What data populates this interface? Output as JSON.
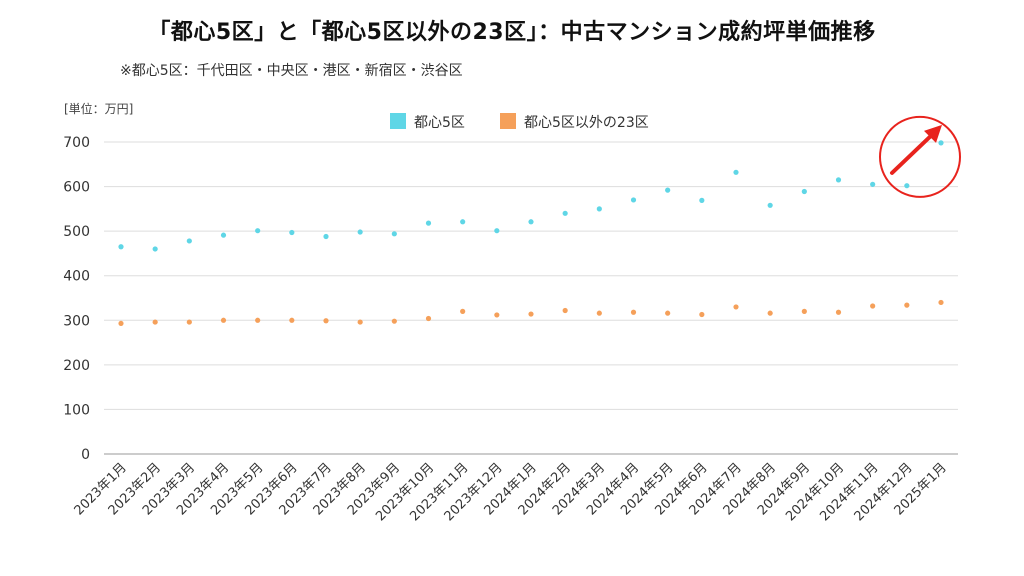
{
  "title": "「都心5区」と「都心5区以外の23区」：中古マンション成約坪単価推移",
  "subtitle": "※都心5区：千代田区・中央区・港区・新宿区・渋谷区",
  "unit_label": "[単位：万円]",
  "chart_data": {
    "type": "scatter",
    "categories": [
      "2023年1月",
      "2023年2月",
      "2023年3月",
      "2023年4月",
      "2023年5月",
      "2023年6月",
      "2023年7月",
      "2023年8月",
      "2023年9月",
      "2023年10月",
      "2023年11月",
      "2023年12月",
      "2024年1月",
      "2024年2月",
      "2024年3月",
      "2024年4月",
      "2024年5月",
      "2024年6月",
      "2024年7月",
      "2024年8月",
      "2024年9月",
      "2024年10月",
      "2024年11月",
      "2024年12月",
      "2025年1月"
    ],
    "series": [
      {
        "name": "都心5区",
        "color": "#5fd6e6",
        "values": [
          465,
          460,
          478,
          491,
          501,
          497,
          488,
          498,
          494,
          518,
          521,
          501,
          521,
          540,
          550,
          570,
          592,
          569,
          632,
          558,
          589,
          615,
          605,
          602,
          698
        ]
      },
      {
        "name": "都心5区以外の23区",
        "color": "#f5a05a",
        "values": [
          293,
          296,
          296,
          300,
          300,
          300,
          299,
          296,
          298,
          304,
          320,
          312,
          314,
          322,
          316,
          318,
          316,
          313,
          330,
          316,
          320,
          318,
          332,
          334,
          340
        ]
      }
    ],
    "yticks": [
      0,
      100,
      200,
      300,
      400,
      500,
      600,
      700
    ],
    "ylim": [
      0,
      700
    ],
    "grid": true,
    "legend": "top-center",
    "annotation": {
      "type": "circle-with-up-arrow",
      "color": "#e8231d",
      "target": "2025年1月"
    }
  }
}
